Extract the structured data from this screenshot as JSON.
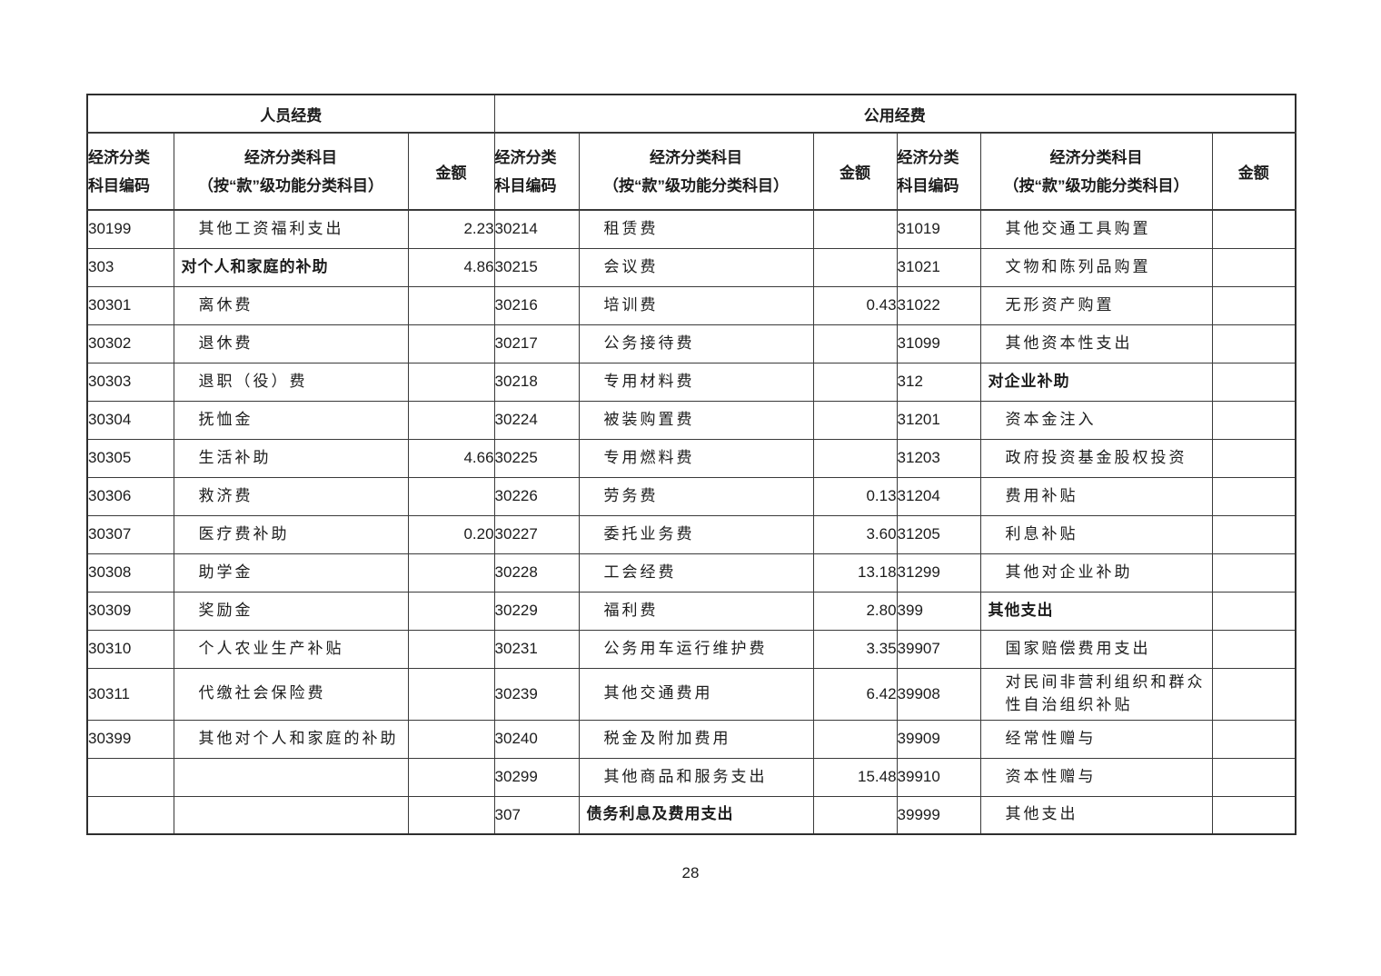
{
  "page_number": "28",
  "table": {
    "section_headers": {
      "personnel": "人员经费",
      "public": "公用经费"
    },
    "column_headers": {
      "code_line1": "经济分类",
      "code_line2": "科目编码",
      "subject_line1": "经济分类科目",
      "subject_line2": "（按“款”级功能分类科目）",
      "amount": "金额"
    },
    "panels": [
      {
        "name": "personnel",
        "rows": [
          {
            "code": "30199",
            "name": "其他工资福利支出",
            "amount": "2.23"
          },
          {
            "code": "303",
            "name": "对个人和家庭的补助",
            "amount": "4.86",
            "category": true
          },
          {
            "code": "30301",
            "name": "离休费",
            "amount": ""
          },
          {
            "code": "30302",
            "name": "退休费",
            "amount": ""
          },
          {
            "code": "30303",
            "name": "退职（役）费",
            "amount": ""
          },
          {
            "code": "30304",
            "name": "抚恤金",
            "amount": ""
          },
          {
            "code": "30305",
            "name": "生活补助",
            "amount": "4.66"
          },
          {
            "code": "30306",
            "name": "救济费",
            "amount": ""
          },
          {
            "code": "30307",
            "name": "医疗费补助",
            "amount": "0.20"
          },
          {
            "code": "30308",
            "name": "助学金",
            "amount": ""
          },
          {
            "code": "30309",
            "name": "奖励金",
            "amount": ""
          },
          {
            "code": "30310",
            "name": "个人农业生产补贴",
            "amount": ""
          },
          {
            "code": "30311",
            "name": "代缴社会保险费",
            "amount": ""
          },
          {
            "code": "30399",
            "name": "其他对个人和家庭的补助",
            "amount": ""
          },
          {
            "code": "",
            "name": "",
            "amount": ""
          },
          {
            "code": "",
            "name": "",
            "amount": ""
          }
        ]
      },
      {
        "name": "public-left",
        "rows": [
          {
            "code": "30214",
            "name": "租赁费",
            "amount": ""
          },
          {
            "code": "30215",
            "name": "会议费",
            "amount": ""
          },
          {
            "code": "30216",
            "name": "培训费",
            "amount": "0.43"
          },
          {
            "code": "30217",
            "name": "公务接待费",
            "amount": ""
          },
          {
            "code": "30218",
            "name": "专用材料费",
            "amount": ""
          },
          {
            "code": "30224",
            "name": "被装购置费",
            "amount": ""
          },
          {
            "code": "30225",
            "name": "专用燃料费",
            "amount": ""
          },
          {
            "code": "30226",
            "name": "劳务费",
            "amount": "0.13"
          },
          {
            "code": "30227",
            "name": "委托业务费",
            "amount": "3.60"
          },
          {
            "code": "30228",
            "name": "工会经费",
            "amount": "13.18"
          },
          {
            "code": "30229",
            "name": "福利费",
            "amount": "2.80"
          },
          {
            "code": "30231",
            "name": "公务用车运行维护费",
            "amount": "3.35"
          },
          {
            "code": "30239",
            "name": "其他交通费用",
            "amount": "6.42"
          },
          {
            "code": "30240",
            "name": "税金及附加费用",
            "amount": ""
          },
          {
            "code": "30299",
            "name": "其他商品和服务支出",
            "amount": "15.48"
          },
          {
            "code": "307",
            "name": "债务利息及费用支出",
            "amount": "",
            "category": true
          }
        ]
      },
      {
        "name": "public-right",
        "rows": [
          {
            "code": "31019",
            "name": "其他交通工具购置",
            "amount": ""
          },
          {
            "code": "31021",
            "name": "文物和陈列品购置",
            "amount": ""
          },
          {
            "code": "31022",
            "name": "无形资产购置",
            "amount": ""
          },
          {
            "code": "31099",
            "name": "其他资本性支出",
            "amount": ""
          },
          {
            "code": "312",
            "name": "对企业补助",
            "amount": "",
            "category": true
          },
          {
            "code": "31201",
            "name": "资本金注入",
            "amount": ""
          },
          {
            "code": "31203",
            "name": "政府投资基金股权投资",
            "amount": ""
          },
          {
            "code": "31204",
            "name": "费用补贴",
            "amount": ""
          },
          {
            "code": "31205",
            "name": "利息补贴",
            "amount": ""
          },
          {
            "code": "31299",
            "name": "其他对企业补助",
            "amount": ""
          },
          {
            "code": "399",
            "name": "其他支出",
            "amount": "",
            "category": true
          },
          {
            "code": "39907",
            "name": "国家赔偿费用支出",
            "amount": ""
          },
          {
            "code": "39908",
            "name": "对民间非营利组织和群众性自治组织补贴",
            "amount": ""
          },
          {
            "code": "39909",
            "name": "经常性赠与",
            "amount": ""
          },
          {
            "code": "39910",
            "name": "资本性赠与",
            "amount": ""
          },
          {
            "code": "39999",
            "name": "其他支出",
            "amount": ""
          }
        ]
      }
    ]
  }
}
